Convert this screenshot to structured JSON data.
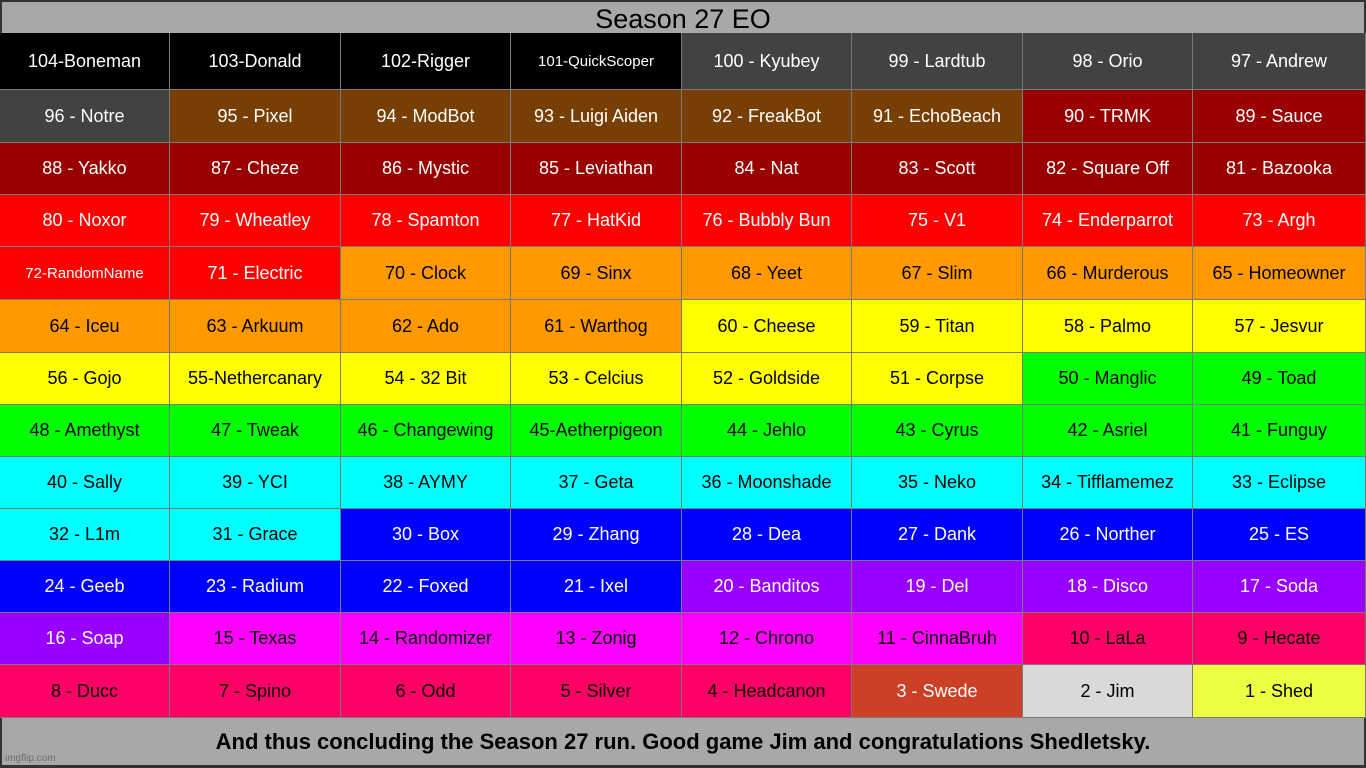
{
  "title": "Season 27 EO",
  "footer": "And thus concluding the Season 27 run. Good game Jim and congratulations Shedletsky.",
  "watermark": "imgflip.com",
  "palette": {
    "black": "#000000",
    "gray": "#424242",
    "brown": "#783f04",
    "darkred": "#990000",
    "red": "#ff0000",
    "orange": "#ff9900",
    "yellow": "#ffff00",
    "green": "#00ff00",
    "cyan": "#00ffff",
    "blue": "#0000ff",
    "purple": "#9900ff",
    "magenta": "#ff00ff",
    "pink": "#ff0066",
    "rust": "#cc4125",
    "silver": "#d9d9d9",
    "lime": "#eeff41"
  },
  "cells": [
    {
      "label": "104-Boneman",
      "color": "black"
    },
    {
      "label": "103-Donald",
      "color": "black"
    },
    {
      "label": "102-Rigger",
      "color": "black"
    },
    {
      "label": "101-QuickScoper",
      "color": "black",
      "small": true
    },
    {
      "label": "100 - Kyubey",
      "color": "gray"
    },
    {
      "label": "99 - Lardtub",
      "color": "gray"
    },
    {
      "label": "98 - Orio",
      "color": "gray"
    },
    {
      "label": "97 - Andrew",
      "color": "gray"
    },
    {
      "label": "96 - Notre",
      "color": "gray"
    },
    {
      "label": "95 - Pixel",
      "color": "brown"
    },
    {
      "label": "94 - ModBot",
      "color": "brown"
    },
    {
      "label": "93 - Luigi Aiden",
      "color": "brown"
    },
    {
      "label": "92 - FreakBot",
      "color": "brown"
    },
    {
      "label": "91 - EchoBeach",
      "color": "brown"
    },
    {
      "label": "90 - TRMK",
      "color": "darkred"
    },
    {
      "label": "89 - Sauce",
      "color": "darkred"
    },
    {
      "label": "88 - Yakko",
      "color": "darkred"
    },
    {
      "label": "87 - Cheze",
      "color": "darkred"
    },
    {
      "label": "86 - Mystic",
      "color": "darkred"
    },
    {
      "label": "85 - Leviathan",
      "color": "darkred"
    },
    {
      "label": "84 - Nat",
      "color": "darkred"
    },
    {
      "label": "83 - Scott",
      "color": "darkred"
    },
    {
      "label": "82 - Square Off",
      "color": "darkred"
    },
    {
      "label": "81 - Bazooka",
      "color": "darkred"
    },
    {
      "label": "80 - Noxor",
      "color": "red"
    },
    {
      "label": "79 - Wheatley",
      "color": "red"
    },
    {
      "label": "78 - Spamton",
      "color": "red"
    },
    {
      "label": "77 - HatKid",
      "color": "red"
    },
    {
      "label": "76 - Bubbly Bun",
      "color": "red"
    },
    {
      "label": "75 - V1",
      "color": "red"
    },
    {
      "label": "74 - Enderparrot",
      "color": "red"
    },
    {
      "label": "73 - Argh",
      "color": "red"
    },
    {
      "label": "72-RandomName",
      "color": "red",
      "small": true
    },
    {
      "label": "71 - Electric",
      "color": "red"
    },
    {
      "label": "70 - Clock",
      "color": "orange"
    },
    {
      "label": "69 - Sinx",
      "color": "orange"
    },
    {
      "label": "68 - Yeet",
      "color": "orange"
    },
    {
      "label": "67 - Slim",
      "color": "orange"
    },
    {
      "label": "66 - Murderous",
      "color": "orange"
    },
    {
      "label": "65 - Homeowner",
      "color": "orange"
    },
    {
      "label": "64 - Iceu",
      "color": "orange"
    },
    {
      "label": "63 - Arkuum",
      "color": "orange"
    },
    {
      "label": "62 - Ado",
      "color": "orange"
    },
    {
      "label": "61 - Warthog",
      "color": "orange"
    },
    {
      "label": "60 - Cheese",
      "color": "yellow"
    },
    {
      "label": "59 - Titan",
      "color": "yellow"
    },
    {
      "label": "58 - Palmo",
      "color": "yellow"
    },
    {
      "label": "57 - Jesvur",
      "color": "yellow"
    },
    {
      "label": "56 - Gojo",
      "color": "yellow"
    },
    {
      "label": "55-Nethercanary",
      "color": "yellow"
    },
    {
      "label": "54 - 32 Bit",
      "color": "yellow"
    },
    {
      "label": "53 - Celcius",
      "color": "yellow"
    },
    {
      "label": "52 - Goldside",
      "color": "yellow"
    },
    {
      "label": "51 - Corpse",
      "color": "yellow"
    },
    {
      "label": "50 - Manglic",
      "color": "green"
    },
    {
      "label": "49 - Toad",
      "color": "green"
    },
    {
      "label": "48 - Amethyst",
      "color": "green"
    },
    {
      "label": "47 - Tweak",
      "color": "green"
    },
    {
      "label": "46 - Changewing",
      "color": "green"
    },
    {
      "label": "45-Aetherpigeon",
      "color": "green"
    },
    {
      "label": "44 - Jehlo",
      "color": "green"
    },
    {
      "label": "43 - Cyrus",
      "color": "green"
    },
    {
      "label": "42 - Asriel",
      "color": "green"
    },
    {
      "label": "41 - Funguy",
      "color": "green"
    },
    {
      "label": "40 - Sally",
      "color": "cyan"
    },
    {
      "label": "39 - YCI",
      "color": "cyan"
    },
    {
      "label": "38 - AYMY",
      "color": "cyan"
    },
    {
      "label": "37 - Geta",
      "color": "cyan"
    },
    {
      "label": "36 - Moonshade",
      "color": "cyan"
    },
    {
      "label": "35 - Neko",
      "color": "cyan"
    },
    {
      "label": "34 - Tifflamemez",
      "color": "cyan"
    },
    {
      "label": "33 - Eclipse",
      "color": "cyan"
    },
    {
      "label": "32 - L1m",
      "color": "cyan"
    },
    {
      "label": "31 - Grace",
      "color": "cyan"
    },
    {
      "label": "30 - Box",
      "color": "blue"
    },
    {
      "label": "29 - Zhang",
      "color": "blue"
    },
    {
      "label": "28 - Dea",
      "color": "blue"
    },
    {
      "label": "27 - Dank",
      "color": "blue"
    },
    {
      "label": "26 - Norther",
      "color": "blue"
    },
    {
      "label": "25 - ES",
      "color": "blue"
    },
    {
      "label": "24 - Geeb",
      "color": "blue"
    },
    {
      "label": "23 - Radium",
      "color": "blue"
    },
    {
      "label": "22 - Foxed",
      "color": "blue"
    },
    {
      "label": "21 - Ixel",
      "color": "blue"
    },
    {
      "label": "20 - Banditos",
      "color": "purple"
    },
    {
      "label": "19 - Del",
      "color": "purple"
    },
    {
      "label": "18 - Disco",
      "color": "purple"
    },
    {
      "label": "17 - Soda",
      "color": "purple"
    },
    {
      "label": "16 - Soap",
      "color": "purple"
    },
    {
      "label": "15 - Texas",
      "color": "magenta"
    },
    {
      "label": "14 - Randomizer",
      "color": "magenta"
    },
    {
      "label": "13 - Zonig",
      "color": "magenta"
    },
    {
      "label": "12 - Chrono",
      "color": "magenta"
    },
    {
      "label": "11 - CinnaBruh",
      "color": "magenta"
    },
    {
      "label": "10 - LaLa",
      "color": "pink"
    },
    {
      "label": "9 - Hecate",
      "color": "pink"
    },
    {
      "label": "8 - Ducc",
      "color": "pink"
    },
    {
      "label": "7 - Spino",
      "color": "pink"
    },
    {
      "label": "6 - Odd",
      "color": "pink"
    },
    {
      "label": "5 - Silver",
      "color": "pink"
    },
    {
      "label": "4 - Headcanon",
      "color": "pink"
    },
    {
      "label": "3 - Swede",
      "color": "rust"
    },
    {
      "label": "2 - Jim",
      "color": "silver"
    },
    {
      "label": "1 - Shed",
      "color": "lime"
    }
  ]
}
